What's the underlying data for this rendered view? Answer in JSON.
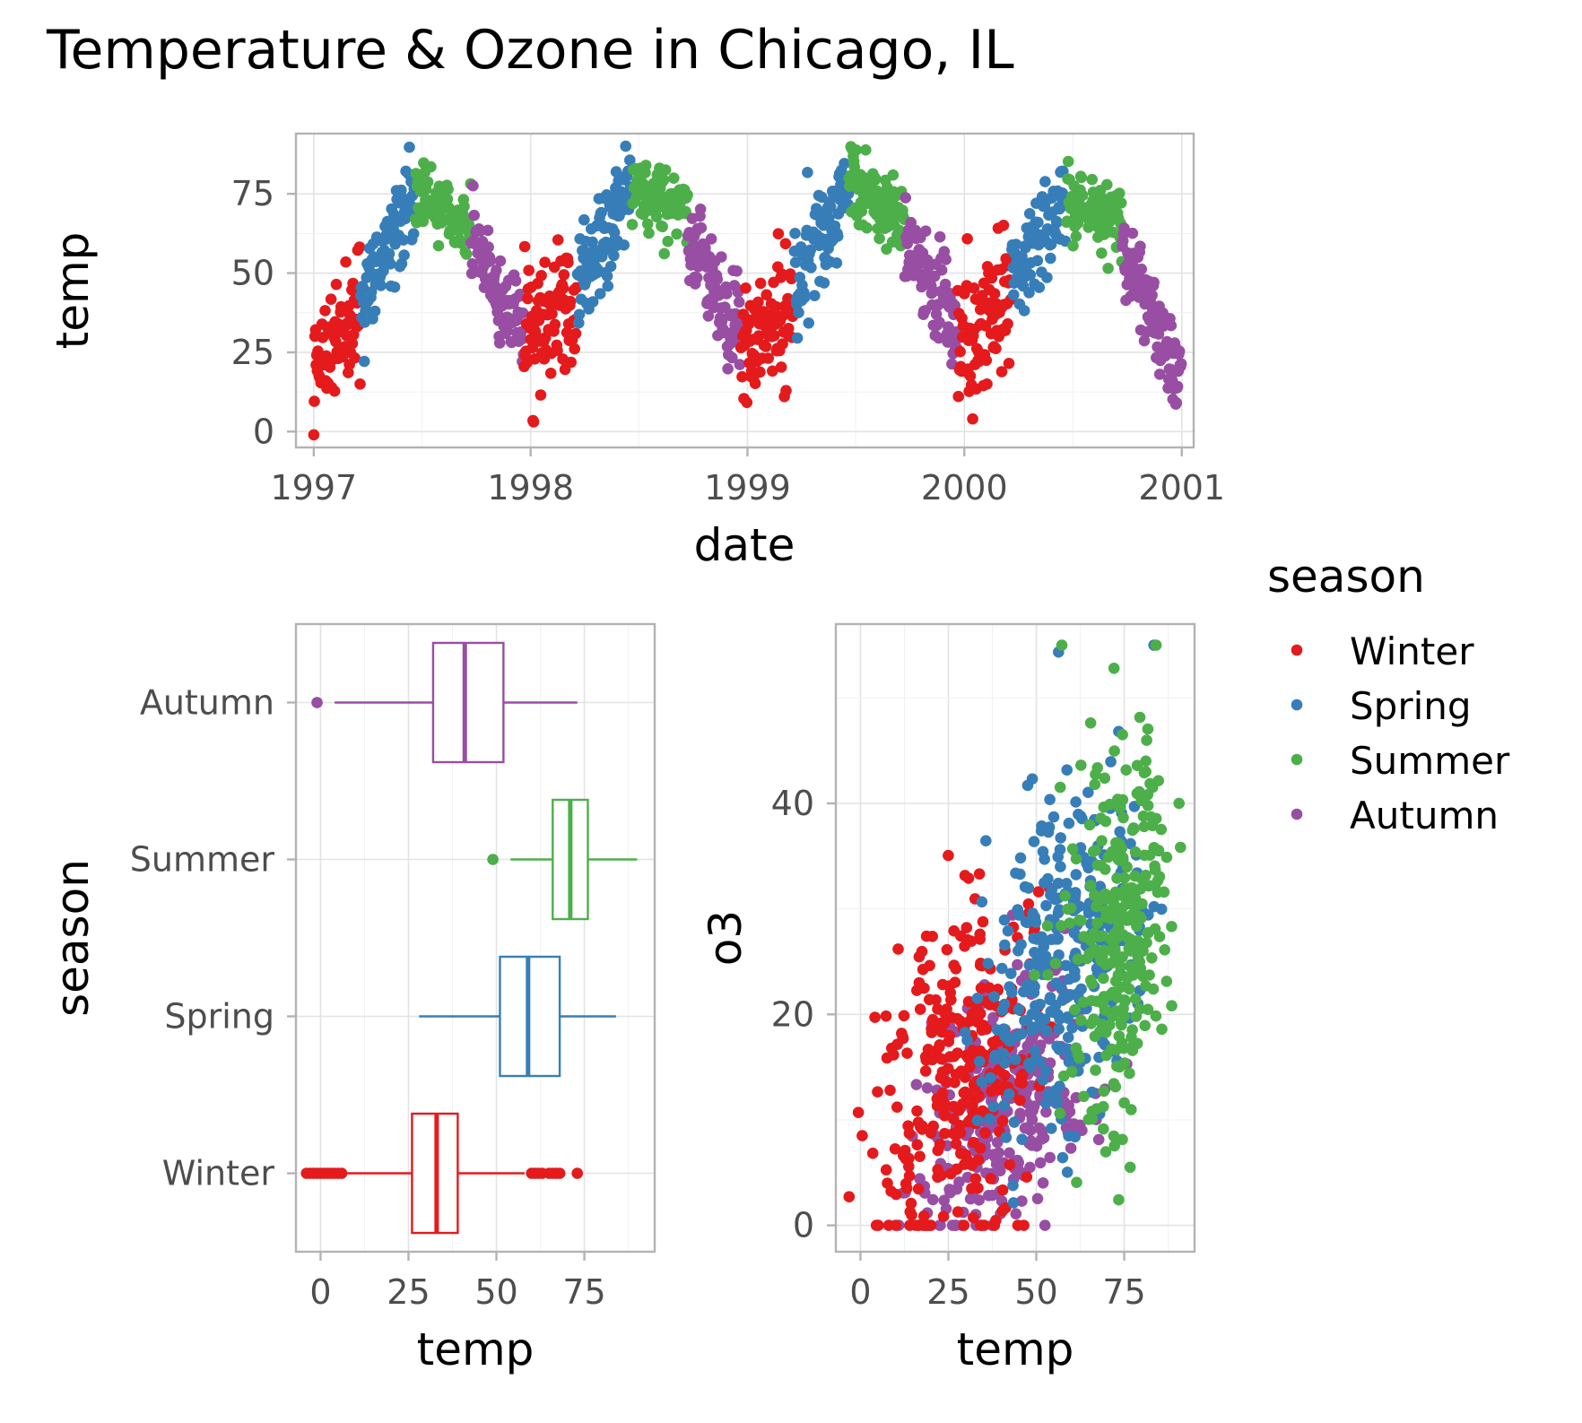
{
  "title": "Temperature & Ozone in Chicago, IL",
  "colors": {
    "Winter": "#e41a1c",
    "Spring": "#377eb8",
    "Summer": "#4daf4a",
    "Autumn": "#984ea3"
  },
  "legend": {
    "title": "season",
    "placement": "right",
    "items": [
      "Winter",
      "Spring",
      "Summer",
      "Autumn"
    ]
  },
  "chart_data": [
    {
      "id": "timeseries",
      "type": "scatter",
      "xlabel": "date",
      "ylabel": "temp",
      "x_ticks": [
        "1997",
        "1998",
        "1999",
        "2000",
        "2001"
      ],
      "y_ticks": [
        0,
        25,
        50,
        75
      ],
      "xlim": [
        "1996-12-02",
        "2001-01-21"
      ],
      "ylim": [
        -5,
        94
      ],
      "grid": true,
      "seasonal_means": [
        {
          "season": "Winter",
          "start": "1997-01-01",
          "end": "1997-03-20",
          "mean_start": 25,
          "mean_end": 38
        },
        {
          "season": "Spring",
          "start": "1997-03-21",
          "end": "1997-06-20",
          "mean_start": 43,
          "mean_end": 75
        },
        {
          "season": "Summer",
          "start": "1997-06-21",
          "end": "1997-09-22",
          "mean_start": 76,
          "mean_end": 64
        },
        {
          "season": "Autumn",
          "start": "1997-09-23",
          "end": "1997-12-20",
          "mean_start": 62,
          "mean_end": 30
        },
        {
          "season": "Winter",
          "start": "1997-12-21",
          "end": "1998-03-20",
          "mean_start": 30,
          "mean_end": 40
        },
        {
          "season": "Spring",
          "start": "1998-03-21",
          "end": "1998-06-20",
          "mean_start": 45,
          "mean_end": 76
        },
        {
          "season": "Summer",
          "start": "1998-06-21",
          "end": "1998-09-22",
          "mean_start": 77,
          "mean_end": 70
        },
        {
          "season": "Autumn",
          "start": "1998-09-23",
          "end": "1998-12-20",
          "mean_start": 63,
          "mean_end": 32
        },
        {
          "season": "Winter",
          "start": "1998-12-21",
          "end": "1999-03-20",
          "mean_start": 28,
          "mean_end": 40
        },
        {
          "season": "Spring",
          "start": "1999-03-21",
          "end": "1999-06-20",
          "mean_start": 46,
          "mean_end": 77
        },
        {
          "season": "Summer",
          "start": "1999-06-21",
          "end": "1999-09-22",
          "mean_start": 80,
          "mean_end": 65
        },
        {
          "season": "Autumn",
          "start": "1999-09-23",
          "end": "1999-12-20",
          "mean_start": 62,
          "mean_end": 30
        },
        {
          "season": "Winter",
          "start": "1999-12-21",
          "end": "2000-03-20",
          "mean_start": 28,
          "mean_end": 42
        },
        {
          "season": "Spring",
          "start": "2000-03-21",
          "end": "2000-06-20",
          "mean_start": 47,
          "mean_end": 73
        },
        {
          "season": "Summer",
          "start": "2000-06-21",
          "end": "2000-09-22",
          "mean_start": 74,
          "mean_end": 67
        },
        {
          "season": "Autumn",
          "start": "2000-09-23",
          "end": "2000-12-31",
          "mean_start": 60,
          "mean_end": 15
        }
      ]
    },
    {
      "id": "boxplot",
      "type": "box",
      "xlabel": "temp",
      "ylabel": "season",
      "x_ticks": [
        0,
        25,
        50,
        75
      ],
      "xlim": [
        -7,
        95
      ],
      "grid": true,
      "categories": [
        "Winter",
        "Spring",
        "Summer",
        "Autumn"
      ],
      "boxes": [
        {
          "season": "Winter",
          "q1": 26,
          "median": 33,
          "q3": 39,
          "whisker_low": 7,
          "whisker_high": 58,
          "outliers": [
            -4,
            -3,
            -2,
            -1,
            0,
            1,
            2,
            3,
            4,
            5,
            6,
            60,
            61,
            62,
            63,
            65,
            66,
            67,
            68,
            73
          ]
        },
        {
          "season": "Spring",
          "q1": 51,
          "median": 59,
          "q3": 68,
          "whisker_low": 28,
          "whisker_high": 84,
          "outliers": []
        },
        {
          "season": "Summer",
          "q1": 66,
          "median": 71,
          "q3": 76,
          "whisker_low": 54,
          "whisker_high": 90,
          "outliers": [
            49
          ]
        },
        {
          "season": "Autumn",
          "q1": 32,
          "median": 41,
          "q3": 52,
          "whisker_low": 4,
          "whisker_high": 73,
          "outliers": [
            -1
          ]
        }
      ]
    },
    {
      "id": "o3-scatter",
      "type": "scatter",
      "xlabel": "temp",
      "ylabel": "o3",
      "x_ticks": [
        0,
        25,
        50,
        75
      ],
      "y_ticks": [
        0,
        20,
        40
      ],
      "xlim": [
        -7,
        95
      ],
      "ylim": [
        -2.5,
        57
      ],
      "grid": true,
      "clusters": [
        {
          "season": "Winter",
          "temp_mean": 30,
          "temp_sd": 11,
          "o3_mean": 15,
          "o3_sd": 8
        },
        {
          "season": "Spring",
          "temp_mean": 58,
          "temp_sd": 12,
          "o3_mean": 26,
          "o3_sd": 8
        },
        {
          "season": "Summer",
          "temp_mean": 73,
          "temp_sd": 7,
          "o3_mean": 27,
          "o3_sd": 9
        },
        {
          "season": "Autumn",
          "temp_mean": 40,
          "temp_sd": 13,
          "o3_mean": 11,
          "o3_sd": 6
        }
      ]
    }
  ]
}
